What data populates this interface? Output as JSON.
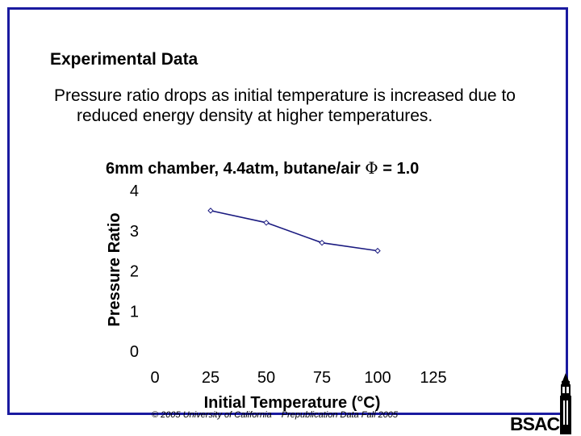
{
  "slide": {
    "heading": "Experimental Data",
    "bullet": "Pressure ratio drops as initial temperature is increased due to reduced energy density at higher temperatures.",
    "chart_title_prefix": "6mm chamber, 4.4atm, butane/air",
    "chart_title_symbol": "Φ",
    "chart_title_suffix": "= 1.0"
  },
  "footer": {
    "copyright": "© 2005 University of California",
    "note": "Prepublication Data Fall 2005"
  },
  "logo": {
    "text": "BSAC",
    "icon": "campanile-tower-icon"
  },
  "colors": {
    "frame": "#1a1aa0",
    "series": "#1a1a80"
  },
  "chart_data": {
    "type": "line",
    "title": "6mm chamber, 4.4atm, butane/air Φ = 1.0",
    "xlabel": "Initial Temperature (°C)",
    "ylabel": "Pressure Ratio",
    "xlim": [
      0,
      125
    ],
    "ylim": [
      0,
      4
    ],
    "xticks": [
      0,
      25,
      50,
      75,
      100,
      125
    ],
    "yticks": [
      0,
      1,
      2,
      3,
      4
    ],
    "grid": false,
    "series": [
      {
        "name": "Pressure Ratio",
        "x": [
          25,
          50,
          75,
          100
        ],
        "y": [
          3.5,
          3.2,
          2.7,
          2.5
        ]
      }
    ]
  }
}
